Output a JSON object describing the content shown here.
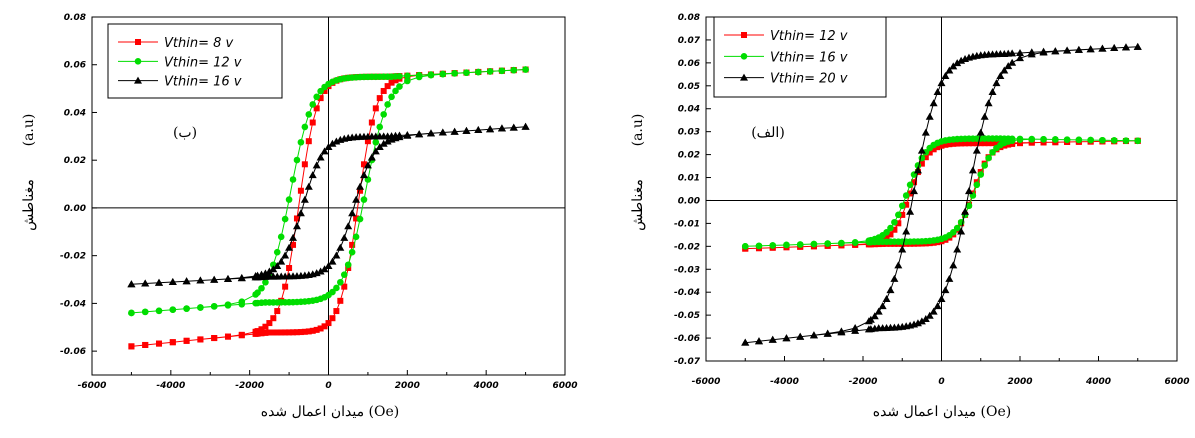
{
  "chart_data": [
    {
      "type": "line",
      "panel_label": "(ب)",
      "xlabel": "میدان اعمال شده (Oe)",
      "ylabel_main": "مغناطش",
      "ylabel_unit": "(a.u)",
      "xlim": [
        -6000,
        6000
      ],
      "ylim": [
        -0.07,
        0.08
      ],
      "xticks": [
        -6000,
        -4000,
        -2000,
        0,
        2000,
        4000,
        6000
      ],
      "yticks": [
        -0.06,
        -0.04,
        -0.02,
        0.0,
        0.02,
        0.04,
        0.06,
        0.08
      ],
      "ytick_labels": [
        "-0.06",
        "-0.04",
        "-0.02",
        "0.00",
        "0.02",
        "0.04",
        "0.06",
        "0.08"
      ],
      "legend_position": "top-left",
      "series": [
        {
          "name": "Vthin=  8 v",
          "color": "#ff0000",
          "marker": "square",
          "Ms": 0.058,
          "Mmin": -0.058,
          "Hc": 750,
          "w": 230,
          "sat": 0.055,
          "Hk": 1500
        },
        {
          "name": "Vthin= 12 v",
          "color": "#00dd00",
          "marker": "circle",
          "Ms": 0.058,
          "Mmin": -0.044,
          "Hc": 950,
          "w": 280,
          "sat": 0.055,
          "Hk": 1600
        },
        {
          "name": "Vthin= 16 v",
          "color": "#000000",
          "marker": "triangle",
          "Ms": 0.034,
          "Mmin": -0.032,
          "Hc": 650,
          "w": 260,
          "sat": 0.03,
          "Hk": 1500
        }
      ]
    },
    {
      "type": "line",
      "panel_label": "(الف)",
      "xlabel": "میدان اعمال شده (Oe)",
      "ylabel_main": "مغناطش",
      "ylabel_unit": "(a.u)",
      "xlim": [
        -6000,
        6000
      ],
      "ylim": [
        -0.07,
        0.08
      ],
      "xticks": [
        -6000,
        -4000,
        -2000,
        0,
        2000,
        4000,
        6000
      ],
      "yticks": [
        -0.07,
        -0.06,
        -0.05,
        -0.04,
        -0.03,
        -0.02,
        -0.01,
        0.0,
        0.01,
        0.02,
        0.03,
        0.04,
        0.05,
        0.06,
        0.07,
        0.08
      ],
      "ytick_labels": [
        "-0.07",
        "-0.06",
        "-0.05",
        "-0.04",
        "-0.03",
        "-0.02",
        "-0.01",
        "0.00",
        "0.01",
        "0.02",
        "0.03",
        "0.04",
        "0.05",
        "0.06",
        "0.07",
        "0.08"
      ],
      "legend_position": "top-left",
      "series": [
        {
          "name": "Vthin= 12 v",
          "color": "#ff0000",
          "marker": "square",
          "Ms": 0.026,
          "Mmin": -0.021,
          "Hc": 800,
          "w": 220,
          "sat": 0.025,
          "Hk": 1400
        },
        {
          "name": "Vthin= 16 v",
          "color": "#00dd00",
          "marker": "circle",
          "Ms": 0.026,
          "Mmin": -0.02,
          "Hc": 850,
          "w": 240,
          "sat": 0.027,
          "Hk": 1500
        },
        {
          "name": "Vthin= 20 v",
          "color": "#000000",
          "marker": "triangle",
          "Ms": 0.067,
          "Mmin": -0.062,
          "Hc": 700,
          "w": 330,
          "sat": 0.064,
          "Hk": 1600
        }
      ]
    }
  ]
}
